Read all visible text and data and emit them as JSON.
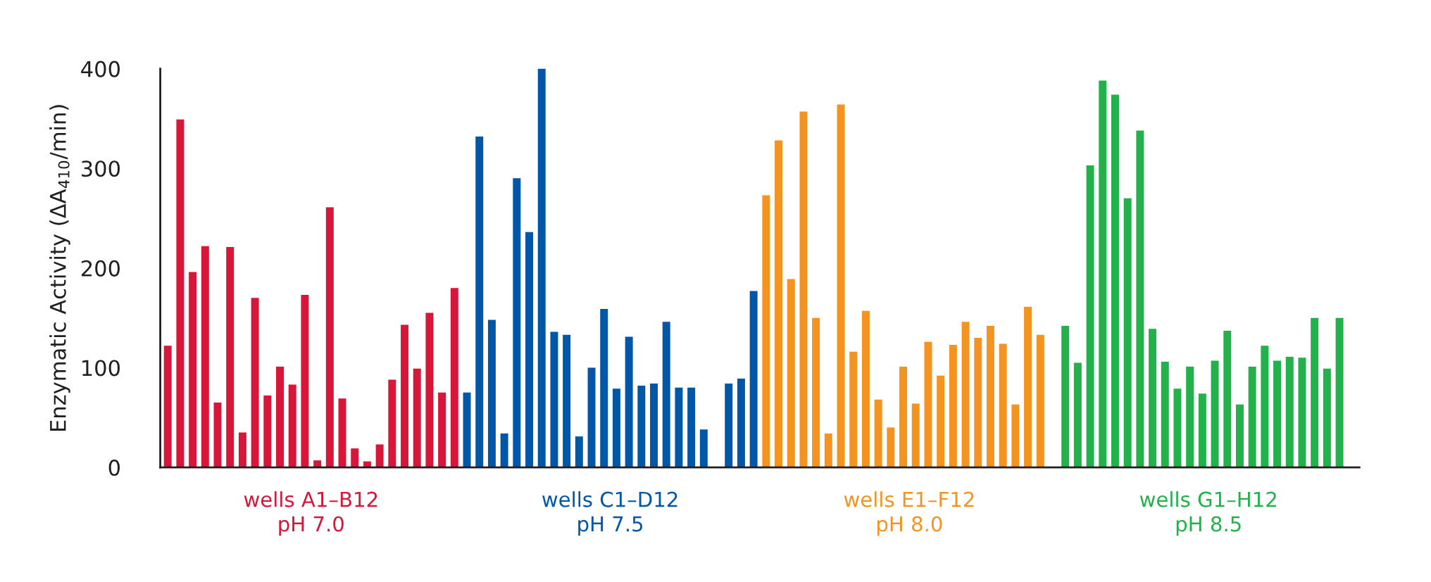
{
  "chart_data": {
    "type": "bar",
    "ylabel": "Enzymatic Activity (ΔA$_{410}$/min)",
    "categories": [
      null,
      null,
      null,
      null,
      null,
      null,
      null,
      null,
      null,
      null,
      null,
      null,
      null,
      null,
      null,
      null,
      null,
      null,
      null,
      null,
      null,
      null,
      null,
      null,
      null,
      null,
      null,
      null,
      null,
      null,
      null,
      null,
      null,
      null,
      null,
      null,
      null,
      null,
      null,
      null,
      null,
      null,
      null,
      null,
      null,
      null,
      null,
      null,
      null,
      null,
      null,
      null,
      null,
      null,
      null,
      null,
      null,
      null,
      null,
      null,
      null,
      null,
      null,
      null,
      null,
      null,
      null,
      null,
      null,
      null,
      null,
      null,
      null,
      null,
      null,
      null,
      null,
      null,
      null,
      null,
      null,
      null,
      null,
      null,
      null,
      null,
      null,
      null,
      null,
      null,
      null,
      null,
      null,
      null,
      null,
      null
    ],
    "ylim": [
      0,
      400
    ],
    "yticks": [
      0,
      100,
      200,
      300,
      400
    ],
    "grid": false,
    "legend": false,
    "series": [
      {
        "name": "wells A1–B12\npH 7.0",
        "color": "#d7163a",
        "values": [
          122,
          349,
          196,
          222,
          65,
          221,
          35,
          170,
          72,
          101,
          83,
          173,
          7,
          261,
          69,
          19,
          6,
          23,
          88,
          143,
          99,
          155,
          75,
          180,
          null,
          null,
          null,
          null,
          null,
          null,
          null,
          null,
          null,
          null,
          null,
          null,
          null,
          null,
          null,
          null,
          null,
          null,
          null,
          null,
          null,
          null,
          null,
          null,
          null,
          null,
          null,
          null,
          null,
          null,
          null,
          null,
          null,
          null,
          null,
          null,
          null,
          null,
          null,
          null,
          null,
          null,
          null,
          null,
          null,
          null,
          null,
          null,
          null,
          null,
          null,
          null,
          null,
          null,
          null,
          null,
          null,
          null,
          null,
          null,
          null,
          null,
          null,
          null,
          null,
          null,
          null,
          null,
          null,
          null,
          null,
          null
        ]
      },
      {
        "name": "wells C1–D12\npH 7.5",
        "color": "#0057a8",
        "values": [
          null,
          null,
          null,
          null,
          null,
          null,
          null,
          null,
          null,
          null,
          null,
          null,
          null,
          null,
          null,
          null,
          null,
          null,
          null,
          null,
          null,
          null,
          null,
          null,
          75,
          332,
          148,
          34,
          290,
          236,
          400,
          136,
          133,
          31,
          100,
          159,
          79,
          131,
          82,
          84,
          146,
          80,
          80,
          38,
          null,
          84,
          89,
          177,
          null,
          null,
          null,
          null,
          null,
          null,
          null,
          null,
          null,
          null,
          null,
          null,
          null,
          null,
          null,
          null,
          null,
          null,
          null,
          null,
          null,
          null,
          null,
          null,
          null,
          null,
          null,
          null,
          null,
          null,
          null,
          null,
          null,
          null,
          null,
          null,
          null,
          null,
          null,
          null,
          null,
          null,
          null,
          null,
          null,
          null,
          null,
          null
        ]
      },
      {
        "name": "wells E1–F12\npH 8.0",
        "color": "#f59320",
        "values": [
          null,
          null,
          null,
          null,
          null,
          null,
          null,
          null,
          null,
          null,
          null,
          null,
          null,
          null,
          null,
          null,
          null,
          null,
          null,
          null,
          null,
          null,
          null,
          null,
          null,
          null,
          null,
          null,
          null,
          null,
          null,
          null,
          null,
          null,
          null,
          null,
          null,
          null,
          null,
          null,
          null,
          null,
          null,
          null,
          null,
          null,
          null,
          null,
          273,
          328,
          189,
          357,
          150,
          34,
          364,
          116,
          157,
          68,
          40,
          101,
          64,
          126,
          92,
          123,
          146,
          130,
          142,
          124,
          63,
          161,
          133,
          null,
          null,
          null,
          null,
          null,
          null,
          null,
          null,
          null,
          null,
          null,
          null,
          null,
          null,
          null,
          null,
          null,
          null,
          null,
          null,
          null,
          null,
          null,
          null,
          null
        ]
      },
      {
        "name": "wells G1–H12\npH 8.5",
        "color": "#23b14b",
        "values": [
          null,
          null,
          null,
          null,
          null,
          null,
          null,
          null,
          null,
          null,
          null,
          null,
          null,
          null,
          null,
          null,
          null,
          null,
          null,
          null,
          null,
          null,
          null,
          null,
          null,
          null,
          null,
          null,
          null,
          null,
          null,
          null,
          null,
          null,
          null,
          null,
          null,
          null,
          null,
          null,
          null,
          null,
          null,
          null,
          null,
          null,
          null,
          null,
          null,
          null,
          null,
          null,
          null,
          null,
          null,
          null,
          null,
          null,
          null,
          null,
          null,
          null,
          null,
          null,
          null,
          null,
          null,
          null,
          null,
          null,
          null,
          null,
          142,
          105,
          303,
          388,
          374,
          270,
          338,
          139,
          106,
          79,
          101,
          74,
          107,
          137,
          63,
          101,
          122,
          107,
          111,
          110,
          150,
          99,
          150,
          null
        ]
      }
    ]
  }
}
